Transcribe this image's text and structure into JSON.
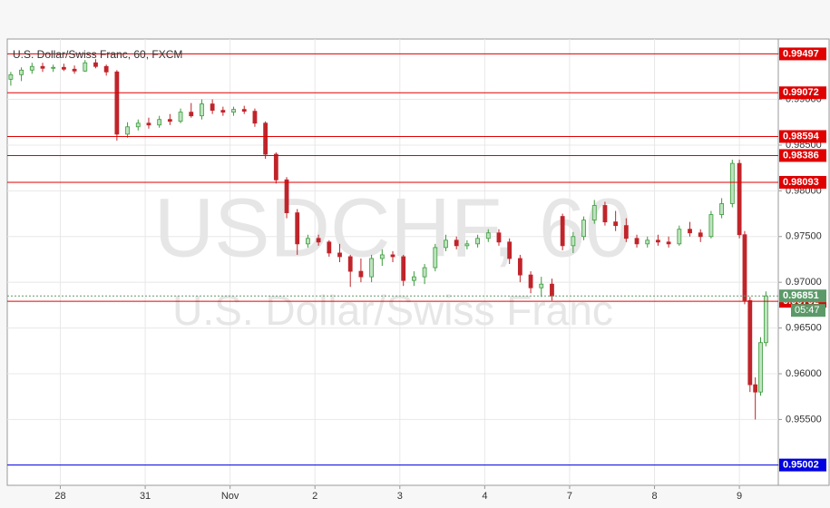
{
  "chart_data": {
    "type": "candlestick",
    "title": "U.S. Dollar/Swiss Franc, 60, FXCM",
    "watermark": [
      "USDCHF, 60",
      "U.S. Dollar/Swiss Franc"
    ],
    "up_color": "#3b9b3b",
    "down_color": "#c0242a",
    "x": [
      1,
      4,
      7,
      10,
      13,
      16,
      19,
      22,
      25,
      28,
      31,
      34,
      37,
      40,
      43,
      46,
      49,
      52,
      55,
      58,
      61,
      64,
      67,
      70,
      73,
      76,
      79,
      82,
      85,
      88,
      91,
      94,
      97,
      100,
      103,
      106,
      109,
      112,
      115,
      118,
      121,
      124,
      127,
      130,
      133,
      136,
      139,
      142,
      145,
      148,
      151,
      154,
      157,
      160,
      163,
      166,
      169,
      172,
      175,
      178,
      181,
      184,
      187,
      190,
      193,
      196,
      199,
      202,
      205,
      207,
      208.5,
      210,
      211.5,
      213,
      214.5
    ],
    "open": [
      0.9922,
      0.9927,
      0.9932,
      0.9936,
      0.9934,
      0.9935,
      0.9933,
      0.9931,
      0.994,
      0.9936,
      0.993,
      0.9862,
      0.987,
      0.9874,
      0.9872,
      0.9878,
      0.9876,
      0.9886,
      0.9882,
      0.9895,
      0.9888,
      0.9886,
      0.9889,
      0.9887,
      0.9874,
      0.984,
      0.9812,
      0.9776,
      0.9742,
      0.9748,
      0.9744,
      0.9732,
      0.9728,
      0.9712,
      0.9706,
      0.9726,
      0.973,
      0.9728,
      0.9702,
      0.9706,
      0.9716,
      0.9738,
      0.9746,
      0.974,
      0.9742,
      0.9748,
      0.9754,
      0.9744,
      0.9726,
      0.9708,
      0.9694,
      0.9698,
      0.9772,
      0.974,
      0.975,
      0.9768,
      0.9784,
      0.9766,
      0.9762,
      0.9748,
      0.9742,
      0.9746,
      0.9744,
      0.9742,
      0.9758,
      0.9754,
      0.975,
      0.9774,
      0.9786,
      0.983,
      0.9752,
      0.968,
      0.9588,
      0.958,
      0.9634
    ],
    "high": [
      0.993,
      0.9935,
      0.994,
      0.994,
      0.9938,
      0.9939,
      0.9937,
      0.9943,
      0.9944,
      0.9938,
      0.9932,
      0.9875,
      0.9878,
      0.988,
      0.9882,
      0.9884,
      0.989,
      0.9896,
      0.99,
      0.99,
      0.9892,
      0.9892,
      0.9893,
      0.989,
      0.9876,
      0.9842,
      0.9815,
      0.978,
      0.9752,
      0.9752,
      0.9746,
      0.9742,
      0.973,
      0.9726,
      0.973,
      0.9736,
      0.9734,
      0.973,
      0.9712,
      0.972,
      0.9742,
      0.9752,
      0.975,
      0.9746,
      0.9752,
      0.9758,
      0.9758,
      0.9748,
      0.973,
      0.9712,
      0.9706,
      0.9704,
      0.9775,
      0.9755,
      0.9772,
      0.979,
      0.9788,
      0.9778,
      0.977,
      0.9752,
      0.975,
      0.9752,
      0.975,
      0.9762,
      0.9766,
      0.9758,
      0.9778,
      0.9792,
      0.9834,
      0.9834,
      0.9756,
      0.9684,
      0.9596,
      0.964,
      0.969
    ],
    "low": [
      0.9915,
      0.992,
      0.9928,
      0.993,
      0.993,
      0.9931,
      0.9928,
      0.993,
      0.9934,
      0.9926,
      0.9855,
      0.9858,
      0.9866,
      0.9868,
      0.9869,
      0.9872,
      0.9874,
      0.988,
      0.9878,
      0.9884,
      0.9882,
      0.9882,
      0.9884,
      0.987,
      0.9835,
      0.9808,
      0.977,
      0.973,
      0.9738,
      0.974,
      0.9728,
      0.9722,
      0.9695,
      0.97,
      0.97,
      0.9718,
      0.9722,
      0.9696,
      0.9696,
      0.9698,
      0.9712,
      0.9734,
      0.9736,
      0.9736,
      0.9738,
      0.9744,
      0.974,
      0.972,
      0.97,
      0.9688,
      0.9684,
      0.968,
      0.9735,
      0.9732,
      0.9746,
      0.9764,
      0.9762,
      0.9756,
      0.9744,
      0.9738,
      0.9738,
      0.974,
      0.9738,
      0.974,
      0.975,
      0.9744,
      0.9748,
      0.977,
      0.9782,
      0.9748,
      0.9676,
      0.958,
      0.955,
      0.9576,
      0.963
    ],
    "close": [
      0.9927,
      0.9932,
      0.9936,
      0.9934,
      0.9935,
      0.9933,
      0.9931,
      0.994,
      0.9936,
      0.993,
      0.9862,
      0.987,
      0.9874,
      0.9872,
      0.9878,
      0.9876,
      0.9886,
      0.9882,
      0.9895,
      0.9888,
      0.9886,
      0.9889,
      0.9887,
      0.9874,
      0.984,
      0.9812,
      0.9776,
      0.9742,
      0.9748,
      0.9744,
      0.9732,
      0.9728,
      0.9712,
      0.9706,
      0.9726,
      0.973,
      0.9728,
      0.9702,
      0.9706,
      0.9716,
      0.9738,
      0.9746,
      0.974,
      0.9742,
      0.9748,
      0.9754,
      0.9744,
      0.9726,
      0.9708,
      0.9694,
      0.9698,
      0.9685,
      0.974,
      0.975,
      0.9768,
      0.9784,
      0.9766,
      0.9762,
      0.9748,
      0.9742,
      0.9746,
      0.9744,
      0.9742,
      0.9758,
      0.9754,
      0.975,
      0.9774,
      0.9786,
      0.983,
      0.9752,
      0.968,
      0.9588,
      0.958,
      0.9634,
      0.96851
    ],
    "xlim": [
      0,
      218
    ],
    "xticks": [
      {
        "value": 15,
        "label": "28"
      },
      {
        "value": 39,
        "label": "31"
      },
      {
        "value": 63,
        "label": "Nov"
      },
      {
        "value": 87,
        "label": "2"
      },
      {
        "value": 111,
        "label": "3"
      },
      {
        "value": 135,
        "label": "4"
      },
      {
        "value": 159,
        "label": "7"
      },
      {
        "value": 183,
        "label": "8"
      },
      {
        "value": 207,
        "label": "9"
      }
    ],
    "ylim": [
      0.9478,
      0.9966
    ],
    "yticks": [
      {
        "value": 0.95,
        "label": "0.95000"
      },
      {
        "value": 0.955,
        "label": "0.95500"
      },
      {
        "value": 0.96,
        "label": "0.96000"
      },
      {
        "value": 0.965,
        "label": "0.96500"
      },
      {
        "value": 0.97,
        "label": "0.97000"
      },
      {
        "value": 0.975,
        "label": "0.97500"
      },
      {
        "value": 0.98,
        "label": "0.98000"
      },
      {
        "value": 0.985,
        "label": "0.98500"
      },
      {
        "value": 0.99,
        "label": "0.99000"
      },
      {
        "value": 0.995,
        "label": "0.99500"
      }
    ],
    "grid": true,
    "levels": [
      {
        "value": 0.99497,
        "color": "#e00000"
      },
      {
        "value": 0.99072,
        "color": "#e00000"
      },
      {
        "value": 0.98594,
        "color": "#e00000"
      },
      {
        "value": 0.98386,
        "color": "#e00000"
      },
      {
        "value": 0.98093,
        "color": "#e00000"
      },
      {
        "value": 0.96792,
        "color": "#e00000"
      },
      {
        "value": 0.95002,
        "color": "#0000e0"
      }
    ],
    "last_price": {
      "value": 0.96851,
      "color": "#5b9a68"
    },
    "countdown": "05:47"
  }
}
